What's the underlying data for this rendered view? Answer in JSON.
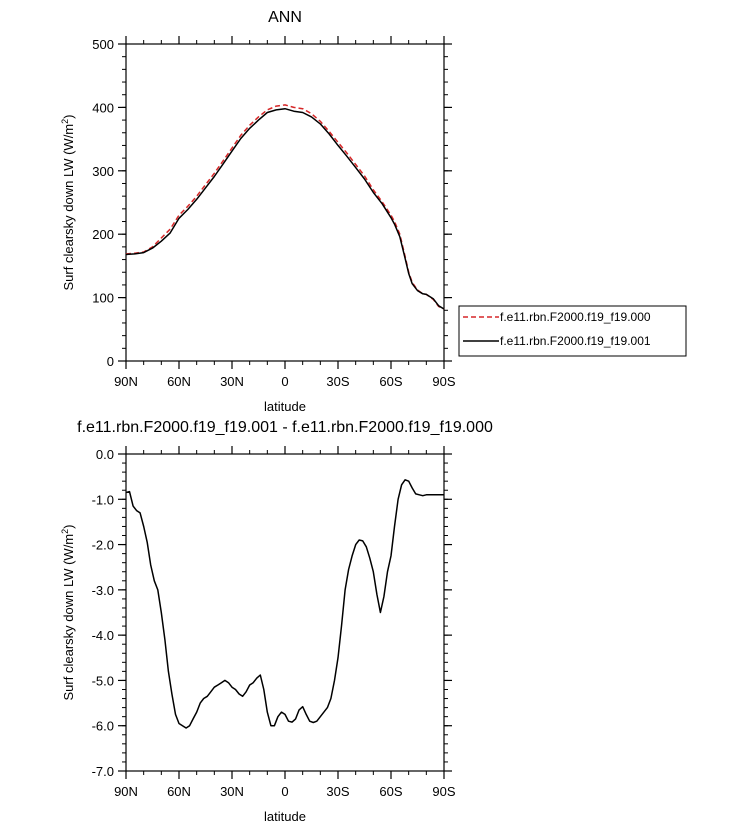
{
  "chart_data": [
    {
      "type": "line",
      "title": "ANN",
      "xlabel": "latitude",
      "ylabel": "Surf clearsky down LW (W/m",
      "ylabel_sup": "2",
      "ylabel_end": ")",
      "xlim": [
        90,
        -90
      ],
      "ylim": [
        0,
        500
      ],
      "x_tick_values": [
        90,
        60,
        30,
        0,
        -30,
        -60,
        -90
      ],
      "x_tick_labels": [
        "90N",
        "60N",
        "30N",
        "0",
        "30S",
        "60S",
        "90S"
      ],
      "y_tick_values": [
        0,
        100,
        200,
        300,
        400,
        500
      ],
      "y_tick_labels": [
        "0",
        "100",
        "200",
        "300",
        "400",
        "500"
      ],
      "legend_position": "right",
      "series": [
        {
          "name": "f.e11.rbn.F2000.f19_f19.000",
          "color": "#d62728",
          "dash": "dashed",
          "x": [
            90,
            85,
            80,
            75,
            70,
            65,
            60,
            55,
            50,
            45,
            40,
            35,
            30,
            25,
            20,
            15,
            10,
            5,
            0,
            -5,
            -10,
            -15,
            -20,
            -25,
            -30,
            -35,
            -40,
            -45,
            -50,
            -55,
            -60,
            -62,
            -65,
            -68,
            -70,
            -72,
            -75,
            -78,
            -80,
            -84,
            -87,
            -90
          ],
          "y": [
            169,
            170,
            172,
            180,
            194,
            208,
            230,
            244,
            260,
            278,
            296,
            316,
            336,
            356,
            372,
            385,
            396,
            402,
            404,
            400,
            398,
            390,
            378,
            362,
            345,
            328,
            310,
            292,
            270,
            251,
            230,
            220,
            200,
            165,
            140,
            124,
            112,
            106,
            105,
            97,
            86,
            82
          ]
        },
        {
          "name": "f.e11.rbn.F2000.f19_f19.001",
          "color": "#000000",
          "dash": "solid",
          "x": [
            90,
            85,
            80,
            75,
            70,
            65,
            60,
            55,
            50,
            45,
            40,
            35,
            30,
            25,
            20,
            15,
            10,
            5,
            0,
            -5,
            -10,
            -15,
            -20,
            -25,
            -30,
            -35,
            -40,
            -45,
            -50,
            -55,
            -60,
            -62,
            -65,
            -68,
            -70,
            -72,
            -75,
            -78,
            -80,
            -84,
            -87,
            -90
          ],
          "y": [
            168,
            169,
            171,
            178,
            189,
            202,
            225,
            239,
            255,
            273,
            291,
            311,
            331,
            351,
            367,
            380,
            392,
            396,
            398,
            394,
            392,
            385,
            374,
            358,
            340,
            323,
            305,
            287,
            266,
            248,
            226,
            216,
            196,
            162,
            138,
            122,
            111,
            106,
            105,
            98,
            87,
            82
          ]
        }
      ]
    },
    {
      "type": "line",
      "title": "f.e11.rbn.F2000.f19_f19.001 - f.e11.rbn.F2000.f19_f19.000",
      "xlabel": "latitude",
      "ylabel": "Surf clearsky down LW (W/m",
      "ylabel_sup": "2",
      "ylabel_end": ")",
      "xlim": [
        90,
        -90
      ],
      "ylim": [
        -7.0,
        0.0
      ],
      "x_tick_values": [
        90,
        60,
        30,
        0,
        -30,
        -60,
        -90
      ],
      "x_tick_labels": [
        "90N",
        "60N",
        "30N",
        "0",
        "30S",
        "60S",
        "90S"
      ],
      "y_tick_values": [
        0,
        -1,
        -2,
        -3,
        -4,
        -5,
        -6,
        -7
      ],
      "y_tick_labels": [
        "0.0",
        "-1.0",
        "-2.0",
        "-3.0",
        "-4.0",
        "-5.0",
        "-6.0",
        "-7.0"
      ],
      "series": [
        {
          "color": "#000000",
          "dash": "solid",
          "x": [
            90,
            88,
            86,
            84,
            82,
            80,
            78,
            76,
            74,
            72,
            70,
            68,
            66,
            64,
            62,
            60,
            58,
            56,
            54,
            52,
            50,
            48,
            46,
            44,
            42,
            40,
            38,
            36,
            34,
            32,
            30,
            28,
            26,
            24,
            22,
            20,
            18,
            16,
            14,
            12,
            10,
            8,
            6,
            4,
            2,
            0,
            -2,
            -4,
            -6,
            -8,
            -10,
            -12,
            -14,
            -16,
            -18,
            -20,
            -22,
            -24,
            -26,
            -28,
            -30,
            -32,
            -34,
            -36,
            -38,
            -40,
            -42,
            -44,
            -46,
            -48,
            -50,
            -52,
            -54,
            -56,
            -58,
            -60,
            -62,
            -64,
            -66,
            -68,
            -70,
            -72,
            -74,
            -76,
            -78,
            -80,
            -82,
            -84,
            -86,
            -88,
            -90
          ],
          "y": [
            -0.85,
            -0.83,
            -1.15,
            -1.25,
            -1.3,
            -1.6,
            -1.95,
            -2.45,
            -2.8,
            -3.0,
            -3.5,
            -4.1,
            -4.8,
            -5.3,
            -5.75,
            -5.95,
            -6.0,
            -6.05,
            -6.0,
            -5.85,
            -5.7,
            -5.5,
            -5.4,
            -5.35,
            -5.25,
            -5.15,
            -5.1,
            -5.05,
            -5.0,
            -5.05,
            -5.15,
            -5.2,
            -5.3,
            -5.35,
            -5.25,
            -5.1,
            -5.05,
            -4.95,
            -4.88,
            -5.2,
            -5.7,
            -6.0,
            -6.0,
            -5.8,
            -5.7,
            -5.75,
            -5.9,
            -5.92,
            -5.85,
            -5.65,
            -5.58,
            -5.75,
            -5.9,
            -5.93,
            -5.9,
            -5.8,
            -5.7,
            -5.6,
            -5.4,
            -5.0,
            -4.5,
            -3.8,
            -3.0,
            -2.55,
            -2.25,
            -2.0,
            -1.9,
            -1.92,
            -2.05,
            -2.3,
            -2.6,
            -3.1,
            -3.5,
            -3.15,
            -2.6,
            -2.25,
            -1.6,
            -1.0,
            -0.68,
            -0.57,
            -0.6,
            -0.75,
            -0.88,
            -0.9,
            -0.92,
            -0.9,
            -0.9,
            -0.9,
            -0.9,
            -0.9,
            -0.9
          ]
        }
      ]
    }
  ]
}
